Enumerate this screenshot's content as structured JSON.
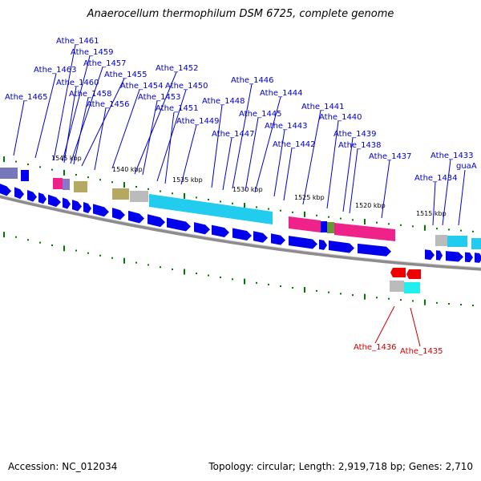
{
  "title": "Anaerocellum thermophilum DSM 6725, complete genome",
  "footer": {
    "accession": "Accession: NC_012034",
    "summary": "Topology: circular; Length: 2,919,718 bp; Genes: 2,710"
  },
  "colors": {
    "label_blue": "#0000cc",
    "label_red": "#cc0000",
    "gene_forward": "#0000ee",
    "gene_reverse": "#ee0000",
    "backbone": "#777777",
    "tick": "#007700"
  },
  "scale_labels": [
    "1545 kbp",
    "1540 kbp",
    "1535 kbp",
    "1530 kbp",
    "1525 kbp",
    "1520 kbp",
    "1515 kbp"
  ],
  "gene_labels": [
    "Athe_1461",
    "Athe_1459",
    "Athe_1463",
    "Athe_1457",
    "Athe_1455",
    "Athe_1460",
    "Athe_1452",
    "Athe_1458",
    "Athe_1454",
    "Athe_1450",
    "Athe_1465",
    "Athe_1453",
    "Athe_1456",
    "Athe_1451",
    "Athe_1446",
    "Athe_1448",
    "Athe_1449",
    "Athe_1444",
    "Athe_1445",
    "Athe_1447",
    "Athe_1443",
    "Athe_1441",
    "Athe_1440",
    "Athe_1442",
    "Athe_1439",
    "Athe_1438",
    "Athe_1437",
    "Athe_1433",
    "Athe_1434",
    "guaA"
  ],
  "reverse_labels": [
    "Athe_1436",
    "Athe_1435"
  ]
}
